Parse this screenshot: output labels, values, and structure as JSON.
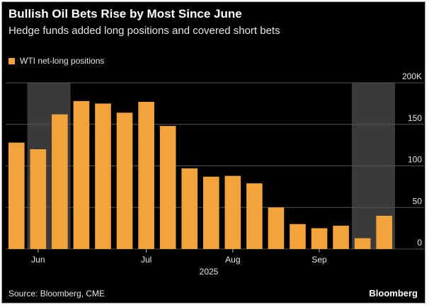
{
  "title": "Bullish Oil Bets Rise by Most Since June",
  "subtitle": "Hedge funds added long positions and covered short bets",
  "source": "Source: Bloomberg, CME",
  "brand": "Bloomberg",
  "colors": {
    "bar": "#f2a33a",
    "background": "#000000",
    "shade": "#3a3a3a",
    "grid": "#555555",
    "text": "#e6e6e6"
  },
  "chart_data": {
    "type": "bar",
    "title": "Bullish Oil Bets Rise by Most Since June",
    "subtitle": "Hedge funds added long positions and covered short bets",
    "series": [
      {
        "name": "WTI net-long positions",
        "values": [
          128,
          120,
          162,
          178,
          175,
          164,
          177,
          148,
          97,
          87,
          88,
          79,
          50,
          30,
          25,
          28,
          13,
          40
        ]
      }
    ],
    "x_ticks": [
      {
        "label": "Jun",
        "index": 1
      },
      {
        "label": "Jul",
        "index": 6
      },
      {
        "label": "Aug",
        "index": 10
      },
      {
        "label": "Sep",
        "index": 14
      }
    ],
    "x_year_label": "2025",
    "y_ticks": [
      "0",
      "50",
      "100",
      "150",
      "200K"
    ],
    "y_tick_values": [
      0,
      50,
      100,
      150,
      200
    ],
    "ylim": [
      0,
      200
    ],
    "y_axis_side": "right",
    "shaded_ranges": [
      {
        "from_index": 1,
        "to_index": 2
      },
      {
        "from_index": 16,
        "to_index": 17
      }
    ],
    "grid": true,
    "legend": "top-left"
  }
}
